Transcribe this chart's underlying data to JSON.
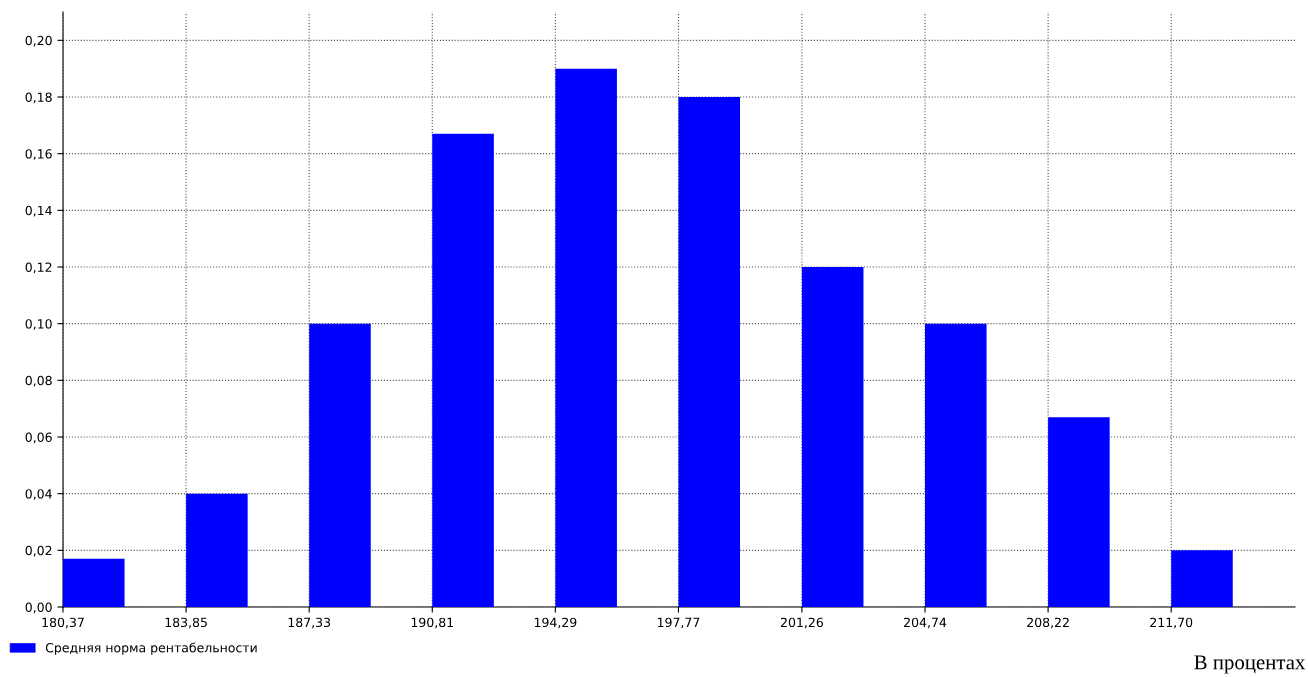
{
  "chart_data": {
    "type": "bar",
    "x": [
      181.24,
      184.72,
      188.2,
      191.68,
      195.16,
      198.64,
      202.13,
      205.61,
      209.09,
      212.57
    ],
    "series": [
      {
        "name": "Средняя норма рентабельности",
        "color": "#0000ff",
        "values": [
          0.017,
          0.04,
          0.1,
          0.167,
          0.19,
          0.18,
          0.12,
          0.1,
          0.067,
          0.02
        ]
      }
    ],
    "xlim": [
      180.37,
      215.2
    ],
    "ylim": [
      0,
      0.21
    ],
    "xticks": [
      {
        "value": 180.37,
        "label": "180,37"
      },
      {
        "value": 183.85,
        "label": "183,85"
      },
      {
        "value": 187.33,
        "label": "187,33"
      },
      {
        "value": 190.81,
        "label": "190,81"
      },
      {
        "value": 194.29,
        "label": "194,29"
      },
      {
        "value": 197.77,
        "label": "197,77"
      },
      {
        "value": 201.26,
        "label": "201,26"
      },
      {
        "value": 204.74,
        "label": "204,74"
      },
      {
        "value": 208.22,
        "label": "208,22"
      },
      {
        "value": 211.7,
        "label": "211,70"
      }
    ],
    "yticks": [
      {
        "value": 0,
        "label": "0,00"
      },
      {
        "value": 0.02,
        "label": "0,02"
      },
      {
        "value": 0.04,
        "label": "0,04"
      },
      {
        "value": 0.06,
        "label": "0,06"
      },
      {
        "value": 0.08,
        "label": "0,08"
      },
      {
        "value": 0.1,
        "label": "0,10"
      },
      {
        "value": 0.12,
        "label": "0,12"
      },
      {
        "value": 0.14,
        "label": "0,14"
      },
      {
        "value": 0.16,
        "label": "0,16"
      },
      {
        "value": 0.18,
        "label": "0,18"
      },
      {
        "value": 0.2,
        "label": "0,20"
      }
    ],
    "grid": true,
    "legend": "bottom left",
    "annotations": [
      "В процентах"
    ]
  }
}
